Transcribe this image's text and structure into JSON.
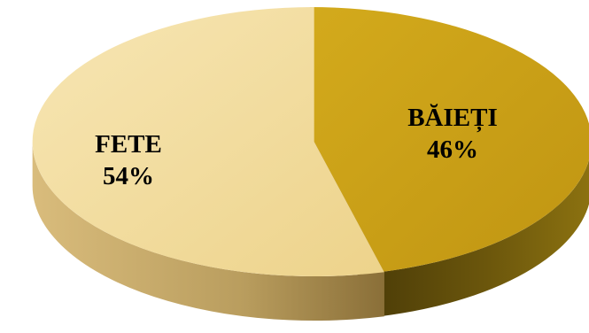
{
  "chart_data": {
    "type": "pie",
    "style": "3d-exploded",
    "slices": [
      {
        "label": "BĂIEȚI",
        "value": 46,
        "value_label": "46%",
        "top_color": "#C9A016",
        "side_color": "#5E4C0A"
      },
      {
        "label": "FETE",
        "value": 54,
        "value_label": "54%",
        "top_color": "#F2DA98",
        "side_color": "#B99D5E"
      }
    ],
    "legend": "none"
  }
}
